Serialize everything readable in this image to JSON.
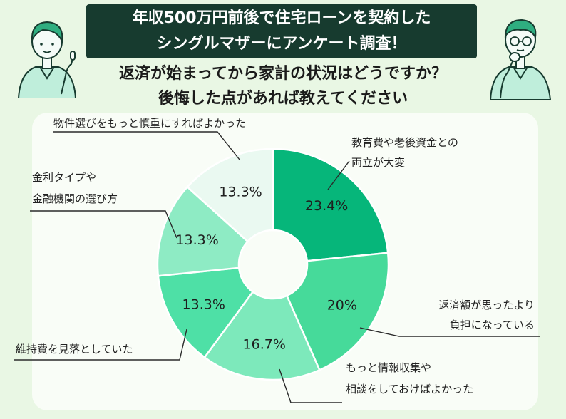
{
  "header": {
    "title_line1": "年収500万円前後で住宅ローンを契約した",
    "title_line2": "シングルマザーにアンケート調査！",
    "question_line1": "返済が始まってから家計の状況はどうですか？",
    "question_line2": "後悔した点があれば教えてください"
  },
  "icons": {
    "left": "woman-pointing-icon",
    "right": "man-thinking-icon"
  },
  "colors": {
    "banner_bg": "#173b2f",
    "page_bg": "#e9f7e4",
    "panel_bg": "#f9fdf7",
    "slices": [
      "#06b67a",
      "#46da9a",
      "#7de9bb",
      "#4ee0a6",
      "#8eebc4",
      "#eaf9f1"
    ]
  },
  "chart_data": {
    "type": "pie",
    "title": "",
    "slices": [
      {
        "label_lines": [
          "教育費や老後資金との",
          "両立が大変"
        ],
        "value": 23.4,
        "value_label": "23.4%"
      },
      {
        "label_lines": [
          "返済額が思ったより",
          "負担になっている"
        ],
        "value": 20,
        "value_label": "20%"
      },
      {
        "label_lines": [
          "もっと情報収集や",
          "相談をしておけばよかった"
        ],
        "value": 16.7,
        "value_label": "16.7%"
      },
      {
        "label_lines": [
          "維持費を見落としていた"
        ],
        "value": 13.3,
        "value_label": "13.3%"
      },
      {
        "label_lines": [
          "金利タイプや",
          "金融機関の選び方"
        ],
        "value": 13.3,
        "value_label": "13.3%"
      },
      {
        "label_lines": [
          "物件選びをもっと慎重にすればよかった"
        ],
        "value": 13.3,
        "value_label": "13.3%"
      }
    ]
  }
}
